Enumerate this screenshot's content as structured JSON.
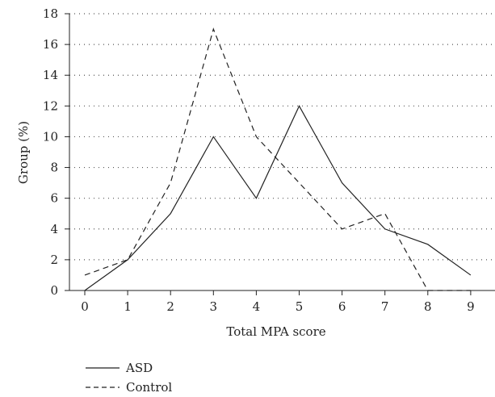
{
  "chart_data": {
    "type": "line",
    "xlabel": "Total MPA score",
    "ylabel": "Group (%)",
    "x": [
      0,
      1,
      2,
      3,
      4,
      5,
      6,
      7,
      8,
      9
    ],
    "x_ticks": [
      "0",
      "1",
      "2",
      "3",
      "4",
      "5",
      "6",
      "7",
      "8",
      "9"
    ],
    "y_ticks": [
      "0",
      "2",
      "4",
      "6",
      "8",
      "10",
      "12",
      "14",
      "16",
      "18"
    ],
    "ylim": [
      0,
      18
    ],
    "xlim": [
      -0.5,
      9.5
    ],
    "grid": "horizontal dotted",
    "legend_position": "bottom-left",
    "series": [
      {
        "name": "ASD",
        "style": "solid",
        "color": "#222222",
        "values": [
          0,
          2,
          5,
          10,
          6,
          12,
          7,
          4,
          3,
          1
        ]
      },
      {
        "name": "Control",
        "style": "dashed",
        "color": "#222222",
        "values": [
          1,
          2,
          7,
          17,
          10,
          7,
          4,
          5,
          0,
          0
        ]
      }
    ]
  }
}
